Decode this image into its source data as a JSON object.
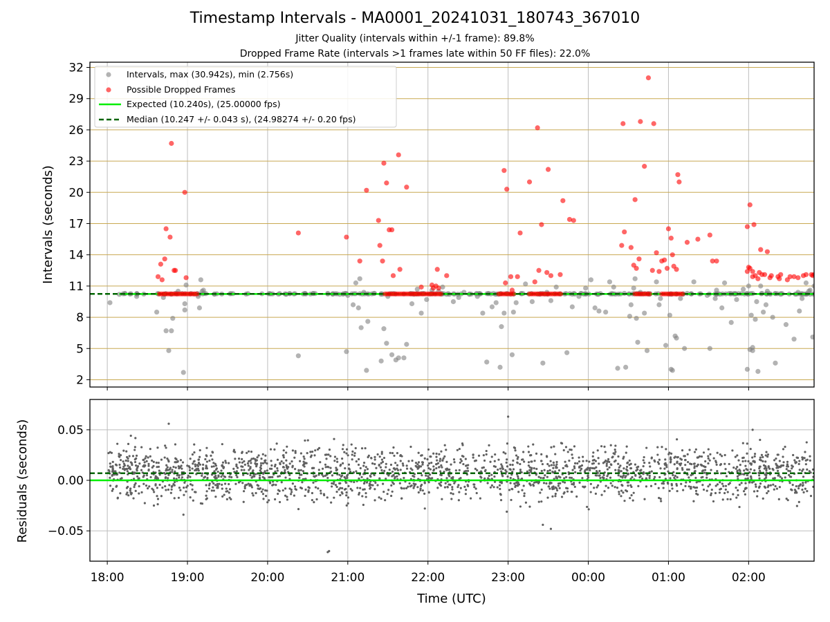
{
  "title": "Timestamp Intervals - MA0001_20241031_180743_367010",
  "subtitle_1": "Jitter Quality (intervals within +/-1 frame): 89.8%",
  "subtitle_2": "Dropped Frame Rate (intervals >1 frames late within 50 FF files): 22.0%",
  "colors": {
    "intervals": "#808080",
    "dropped": "#ff0000",
    "expected": "#00ee00",
    "median": "#006400",
    "hgrid": "#c8a850",
    "vgrid": "#bdbdbd",
    "residuals": "#606060"
  },
  "chart_data": [
    {
      "type": "scatter",
      "ylabel": "Intervals (seconds)",
      "xlim": [
        "17:47",
        "02:49"
      ],
      "ylim": [
        1.3,
        32.5
      ],
      "yticks": [
        "2",
        "5",
        "8",
        "11",
        "14",
        "17",
        "20",
        "23",
        "26",
        "29",
        "32"
      ],
      "grid": true,
      "legend_position": "top-left",
      "legend": [
        {
          "label": "Intervals, max (30.942s), min (2.756s)",
          "marker": "grey circle"
        },
        {
          "label": "Possible Dropped Frames",
          "marker": "red circle"
        },
        {
          "label": "Expected (10.240s), (25.00000 fps)",
          "line": "solid green"
        },
        {
          "label": "Median (10.247 +/- 0.043 s), (24.98274 +/- 0.20 fps)",
          "line": "dashed dark green"
        }
      ],
      "expected": 10.24,
      "median": 10.247,
      "dropped_band_ranges": [
        [
          "18:39",
          "19:07"
        ],
        [
          "21:28",
          "21:50"
        ],
        [
          "21:51",
          "22:11"
        ],
        [
          "22:53",
          "23:05"
        ],
        [
          "23:16",
          "23:40"
        ],
        [
          "00:35",
          "00:47"
        ],
        [
          "00:55",
          "01:11"
        ]
      ],
      "series": [
        {
          "name": "Intervals, max (30.942s), min (2.756s)",
          "x": [
            "18:02",
            "18:09",
            "18:22",
            "18:37",
            "18:42",
            "18:44",
            "18:46",
            "18:48",
            "18:49",
            "18:51",
            "18:53",
            "18:57",
            "18:58",
            "18:58",
            "18:59",
            "19:08",
            "19:09",
            "19:10",
            "19:11",
            "19:12",
            "20:23",
            "20:45",
            "20:54",
            "20:59",
            "21:00",
            "21:04",
            "21:06",
            "21:08",
            "21:09",
            "21:10",
            "21:12",
            "21:14",
            "21:15",
            "21:20",
            "21:25",
            "21:27",
            "21:29",
            "21:30",
            "21:33",
            "21:36",
            "21:38",
            "21:42",
            "21:44",
            "21:48",
            "21:52",
            "21:55",
            "21:59",
            "22:03",
            "22:08",
            "22:11",
            "22:14",
            "22:16",
            "22:19",
            "22:23",
            "22:27",
            "22:31",
            "22:37",
            "22:41",
            "22:44",
            "22:48",
            "22:51",
            "22:54",
            "22:55",
            "22:57",
            "23:03",
            "23:04",
            "23:06",
            "23:13",
            "23:18",
            "23:26",
            "23:29",
            "23:32",
            "23:36",
            "23:44",
            "23:48",
            "23:53",
            "23:58",
            "00:02",
            "00:05",
            "00:08",
            "00:13",
            "00:16",
            "00:19",
            "00:22",
            "00:27",
            "00:28",
            "00:31",
            "00:32",
            "00:34",
            "00:35",
            "00:36",
            "00:37",
            "00:39",
            "00:42",
            "00:44",
            "00:51",
            "00:53",
            "00:54",
            "00:58",
            "01:01",
            "01:02",
            "01:03",
            "01:05",
            "01:06",
            "01:09",
            "01:12",
            "01:14",
            "01:19",
            "01:29",
            "01:31",
            "01:35",
            "01:36",
            "01:40",
            "01:42",
            "01:47",
            "01:51",
            "01:56",
            "01:59",
            "02:00",
            "02:01",
            "02:02",
            "02:03",
            "02:03",
            "02:05",
            "02:06",
            "02:07",
            "02:09",
            "02:10",
            "02:11",
            "02:13",
            "02:14",
            "02:18",
            "02:20",
            "02:24",
            "02:28",
            "02:34",
            "02:37",
            "02:38",
            "02:40",
            "02:43",
            "02:45",
            "02:46",
            "02:48",
            "02:49"
          ],
          "y": [
            9.4,
            10.2,
            10.0,
            8.5,
            9.9,
            6.7,
            4.8,
            6.7,
            7.9,
            10.3,
            10.5,
            2.7,
            8.7,
            9.3,
            11.1,
            10.0,
            8.9,
            11.6,
            10.5,
            10.6,
            4.3,
            10.3,
            10.2,
            4.7,
            10.1,
            9.2,
            11.3,
            8.9,
            11.7,
            7.0,
            10.4,
            2.9,
            7.6,
            10.3,
            3.8,
            6.9,
            5.5,
            10.0,
            4.4,
            3.9,
            4.1,
            4.1,
            5.4,
            9.3,
            10.7,
            8.4,
            9.7,
            10.6,
            10.5,
            10.9,
            10.2,
            10.2,
            9.5,
            9.9,
            10.4,
            10.2,
            10.0,
            8.4,
            3.7,
            9.0,
            9.4,
            3.2,
            7.1,
            8.4,
            4.4,
            8.5,
            9.4,
            11.2,
            9.5,
            3.6,
            10.4,
            9.6,
            10.9,
            4.6,
            9.0,
            10.0,
            10.8,
            11.6,
            8.9,
            8.6,
            8.5,
            11.4,
            10.9,
            3.1,
            10.3,
            3.2,
            8.1,
            9.2,
            10.8,
            11.7,
            7.9,
            5.6,
            10.4,
            8.4,
            4.8,
            11.4,
            9.2,
            9.8,
            5.3,
            8.2,
            3.0,
            2.9,
            6.2,
            6.0,
            9.8,
            5.0,
            10.3,
            11.4,
            10.1,
            5.0,
            9.8,
            10.6,
            8.9,
            11.3,
            7.5,
            9.7,
            10.7,
            3.0,
            11.0,
            4.9,
            8.2,
            5.1,
            4.8,
            7.8,
            9.5,
            2.8,
            11.0,
            10.3,
            8.5,
            9.2,
            10.5,
            8.0,
            3.6,
            10.2,
            7.3,
            5.9,
            10.4,
            8.6,
            9.8,
            11.3,
            10.5,
            10.6,
            6.1,
            11.0
          ]
        },
        {
          "name": "Possible Dropped Frames",
          "x": [
            "18:38",
            "18:40",
            "18:41",
            "18:43",
            "18:44",
            "18:47",
            "18:48",
            "18:50",
            "18:51",
            "18:58",
            "18:59",
            "20:23",
            "20:59",
            "21:09",
            "21:14",
            "21:23",
            "21:24",
            "21:26",
            "21:27",
            "21:29",
            "21:31",
            "21:33",
            "21:34",
            "21:38",
            "21:39",
            "21:44",
            "21:55",
            "22:03",
            "22:04",
            "22:06",
            "22:07",
            "22:08",
            "22:14",
            "22:57",
            "22:58",
            "22:59",
            "23:02",
            "23:03",
            "23:07",
            "23:09",
            "23:16",
            "23:20",
            "23:22",
            "23:23",
            "23:25",
            "23:29",
            "23:30",
            "23:32",
            "23:39",
            "23:41",
            "23:46",
            "23:49",
            "00:25",
            "00:26",
            "00:27",
            "00:32",
            "00:34",
            "00:35",
            "00:36",
            "00:38",
            "00:39",
            "00:42",
            "00:45",
            "00:48",
            "00:49",
            "00:51",
            "00:53",
            "00:55",
            "00:57",
            "00:59",
            "01:00",
            "01:02",
            "01:03",
            "01:04",
            "01:06",
            "01:07",
            "01:08",
            "01:14",
            "01:22",
            "01:31",
            "01:33",
            "01:36",
            "01:59",
            "01:59",
            "02:00",
            "02:01",
            "02:01",
            "02:03",
            "02:03",
            "02:04",
            "02:05",
            "02:07",
            "02:08",
            "02:09",
            "02:10",
            "02:12",
            "02:14",
            "02:16",
            "02:17",
            "02:22",
            "02:23",
            "02:24",
            "02:29",
            "02:31",
            "02:34",
            "02:37",
            "02:41",
            "02:43",
            "02:47",
            "02:48",
            "02:49"
          ],
          "y": [
            11.9,
            13.1,
            11.6,
            13.6,
            16.5,
            15.7,
            24.7,
            12.5,
            12.5,
            20.0,
            11.8,
            16.1,
            15.7,
            13.4,
            20.2,
            17.3,
            14.9,
            13.4,
            22.8,
            20.9,
            16.4,
            16.4,
            12.0,
            23.6,
            12.6,
            20.5,
            10.9,
            11.1,
            10.8,
            11.0,
            12.6,
            10.8,
            12.0,
            22.1,
            11.3,
            20.3,
            11.9,
            10.6,
            11.9,
            16.1,
            21.0,
            11.4,
            26.2,
            12.5,
            16.9,
            12.3,
            22.2,
            12.0,
            12.1,
            19.2,
            17.4,
            17.3,
            14.9,
            26.6,
            16.2,
            14.7,
            13.0,
            19.3,
            12.7,
            13.6,
            26.8,
            22.5,
            31.0,
            12.5,
            26.6,
            14.2,
            12.4,
            13.4,
            13.5,
            12.7,
            16.5,
            15.6,
            14.0,
            12.9,
            12.6,
            21.7,
            21.0,
            15.2,
            15.5,
            15.9,
            13.4,
            13.4,
            16.7,
            12.4,
            12.8,
            12.7,
            18.8,
            11.9,
            12.4,
            16.9,
            12.0,
            11.7,
            12.3,
            14.5,
            12.1,
            12.1,
            14.3,
            11.8,
            12.0,
            11.9,
            11.7,
            12.1,
            11.6,
            11.9,
            11.9,
            11.8,
            12.0,
            12.1,
            12.1,
            12.0,
            12.1
          ]
        }
      ]
    },
    {
      "type": "scatter",
      "xlabel": "Time (UTC)",
      "ylabel": "Residuals (seconds)",
      "xlim": [
        "17:47",
        "02:49"
      ],
      "xticks": [
        "18:00",
        "19:00",
        "20:00",
        "21:00",
        "22:00",
        "23:00",
        "00:00",
        "01:00",
        "02:00"
      ],
      "ylim": [
        -0.08,
        0.08
      ],
      "yticks": [
        "−0.05",
        "0.00",
        "0.05"
      ],
      "grid": true,
      "expected_residual": 0.0,
      "median_residual": 0.007,
      "residual_band": {
        "from": "18:00",
        "to": "02:49",
        "center": 0.007,
        "spread": 0.013
      },
      "residual_outliers": {
        "x": [
          "18:46",
          "18:57",
          "20:45",
          "20:46",
          "23:00",
          "22:59",
          "23:26",
          "23:32",
          "02:03"
        ],
        "y": [
          0.056,
          -0.034,
          -0.071,
          -0.07,
          0.063,
          -0.031,
          -0.044,
          -0.048,
          0.05
        ]
      },
      "series": [
        {
          "name": "Expected (10.240s), (25.00000 fps)",
          "y": 0.0
        },
        {
          "name": "Median (10.247 +/- 0.043 s), (24.98274 +/- 0.20 fps)",
          "y": 0.007
        }
      ]
    }
  ]
}
